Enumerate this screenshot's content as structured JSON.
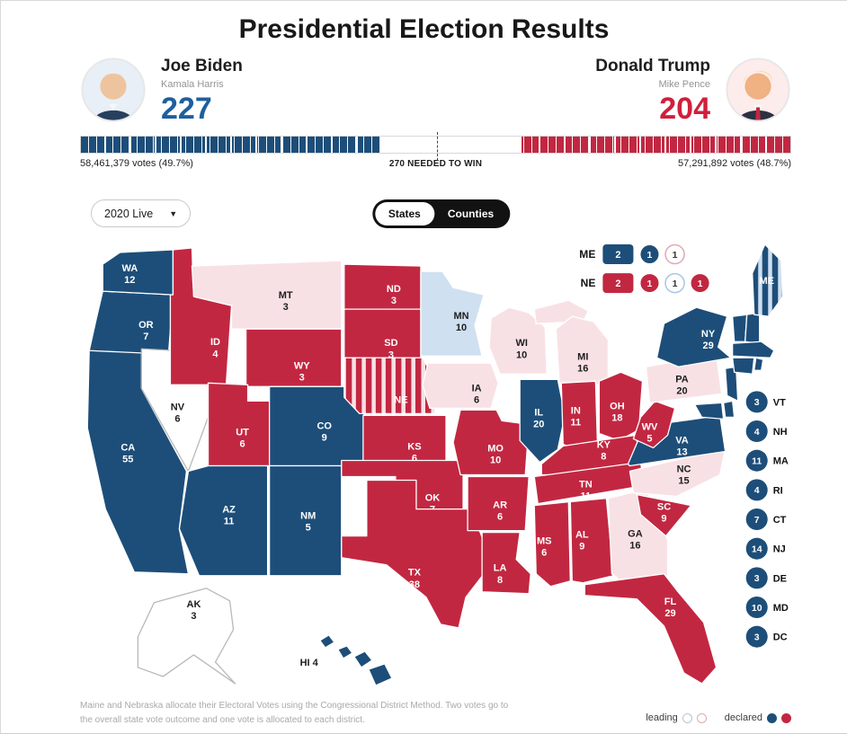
{
  "title": "Presidential Election Results",
  "colors": {
    "dem": "#1d4e79",
    "rep": "#c22741",
    "lead_dem": "#cfe0f1",
    "lead_rep": "#f8e1e5",
    "uncalled": "#ffffff",
    "dem_bright": "#1d5fa0",
    "rep_bright": "#d01f3c"
  },
  "candidates": {
    "dem": {
      "name": "Joe Biden",
      "running_mate": "Kamala Harris",
      "electoral_votes": "227",
      "votes_label": "58,461,379 votes (49.7%)"
    },
    "rep": {
      "name": "Donald Trump",
      "running_mate": "Mike Pence",
      "electoral_votes": "204",
      "votes_label": "57,291,892 votes (48.7%)"
    }
  },
  "bar": {
    "needed_label": "270 NEEDED TO WIN",
    "dem_pct": 42.2,
    "rep_pct": 37.9,
    "needed_pct": 50.2
  },
  "controls": {
    "dropdown_value": "2020 Live",
    "toggle_options": [
      "States",
      "Counties"
    ],
    "toggle_selected": "States"
  },
  "cd_legend": {
    "rows": [
      {
        "state": "ME",
        "statewide": {
          "value": "2",
          "status": "dem"
        },
        "districts": [
          {
            "value": "1",
            "status": "dem"
          },
          {
            "value": "1",
            "status": "lead-rep-outline"
          }
        ]
      },
      {
        "state": "NE",
        "statewide": {
          "value": "2",
          "status": "rep"
        },
        "districts": [
          {
            "value": "1",
            "status": "rep"
          },
          {
            "value": "1",
            "status": "lead-dem-outline"
          },
          {
            "value": "1",
            "status": "rep"
          }
        ]
      }
    ]
  },
  "map": {
    "states": [
      {
        "abbr": "CA",
        "votes": "55",
        "status": "dem"
      },
      {
        "abbr": "OR",
        "votes": "7",
        "status": "dem"
      },
      {
        "abbr": "WA",
        "votes": "12",
        "status": "dem"
      },
      {
        "abbr": "NV",
        "votes": "6",
        "status": "uncalled"
      },
      {
        "abbr": "ID",
        "votes": "4",
        "status": "rep"
      },
      {
        "abbr": "MT",
        "votes": "3",
        "status": "lead-rep"
      },
      {
        "abbr": "WY",
        "votes": "3",
        "status": "rep"
      },
      {
        "abbr": "UT",
        "votes": "6",
        "status": "rep"
      },
      {
        "abbr": "CO",
        "votes": "9",
        "status": "dem"
      },
      {
        "abbr": "AZ",
        "votes": "11",
        "status": "dem"
      },
      {
        "abbr": "NM",
        "votes": "5",
        "status": "dem"
      },
      {
        "abbr": "ND",
        "votes": "3",
        "status": "rep"
      },
      {
        "abbr": "SD",
        "votes": "3",
        "status": "rep"
      },
      {
        "abbr": "NE",
        "votes": "",
        "status": "split-rep"
      },
      {
        "abbr": "KS",
        "votes": "6",
        "status": "rep"
      },
      {
        "abbr": "OK",
        "votes": "7",
        "status": "rep"
      },
      {
        "abbr": "TX",
        "votes": "38",
        "status": "rep"
      },
      {
        "abbr": "MN",
        "votes": "10",
        "status": "lead-dem"
      },
      {
        "abbr": "IA",
        "votes": "6",
        "status": "lead-rep"
      },
      {
        "abbr": "MO",
        "votes": "10",
        "status": "rep"
      },
      {
        "abbr": "AR",
        "votes": "6",
        "status": "rep"
      },
      {
        "abbr": "LA",
        "votes": "8",
        "status": "rep"
      },
      {
        "abbr": "WI",
        "votes": "10",
        "status": "lead-rep"
      },
      {
        "abbr": "IL",
        "votes": "20",
        "status": "dem"
      },
      {
        "abbr": "MI",
        "votes": "16",
        "status": "lead-rep"
      },
      {
        "abbr": "IN",
        "votes": "11",
        "status": "rep"
      },
      {
        "abbr": "OH",
        "votes": "18",
        "status": "rep"
      },
      {
        "abbr": "KY",
        "votes": "8",
        "status": "rep"
      },
      {
        "abbr": "TN",
        "votes": "11",
        "status": "rep"
      },
      {
        "abbr": "MS",
        "votes": "6",
        "status": "rep"
      },
      {
        "abbr": "AL",
        "votes": "9",
        "status": "rep"
      },
      {
        "abbr": "GA",
        "votes": "16",
        "status": "lead-rep"
      },
      {
        "abbr": "FL",
        "votes": "29",
        "status": "rep"
      },
      {
        "abbr": "SC",
        "votes": "9",
        "status": "rep"
      },
      {
        "abbr": "NC",
        "votes": "15",
        "status": "lead-rep"
      },
      {
        "abbr": "VA",
        "votes": "13",
        "status": "dem"
      },
      {
        "abbr": "WV",
        "votes": "5",
        "status": "rep"
      },
      {
        "abbr": "PA",
        "votes": "20",
        "status": "lead-rep"
      },
      {
        "abbr": "NY",
        "votes": "29",
        "status": "dem"
      },
      {
        "abbr": "NJ",
        "votes": "",
        "status": "dem"
      },
      {
        "abbr": "DE",
        "votes": "",
        "status": "dem"
      },
      {
        "abbr": "MD",
        "votes": "",
        "status": "dem"
      },
      {
        "abbr": "VT",
        "votes": "",
        "status": "dem"
      },
      {
        "abbr": "NH",
        "votes": "",
        "status": "dem"
      },
      {
        "abbr": "MA",
        "votes": "",
        "status": "dem"
      },
      {
        "abbr": "CT",
        "votes": "",
        "status": "dem"
      },
      {
        "abbr": "RI",
        "votes": "",
        "status": "dem"
      },
      {
        "abbr": "ME",
        "votes": "",
        "status": "split-dem"
      },
      {
        "abbr": "AK",
        "votes": "3",
        "status": "uncalled"
      },
      {
        "abbr": "HI",
        "votes": "4",
        "status": "dem"
      }
    ],
    "east_states": [
      {
        "abbr": "VT",
        "votes": "3"
      },
      {
        "abbr": "NH",
        "votes": "4"
      },
      {
        "abbr": "MA",
        "votes": "11"
      },
      {
        "abbr": "RI",
        "votes": "4"
      },
      {
        "abbr": "CT",
        "votes": "7"
      },
      {
        "abbr": "NJ",
        "votes": "14"
      },
      {
        "abbr": "DE",
        "votes": "3"
      },
      {
        "abbr": "MD",
        "votes": "10"
      },
      {
        "abbr": "DC",
        "votes": "3"
      }
    ]
  },
  "footnote": "Maine and Nebraska allocate their Electoral Votes using the Congressional District Method. Two votes go to the overall state vote outcome and one vote is allocated to each district.",
  "bottom_legend": {
    "leading_label": "leading",
    "declared_label": "declared"
  }
}
